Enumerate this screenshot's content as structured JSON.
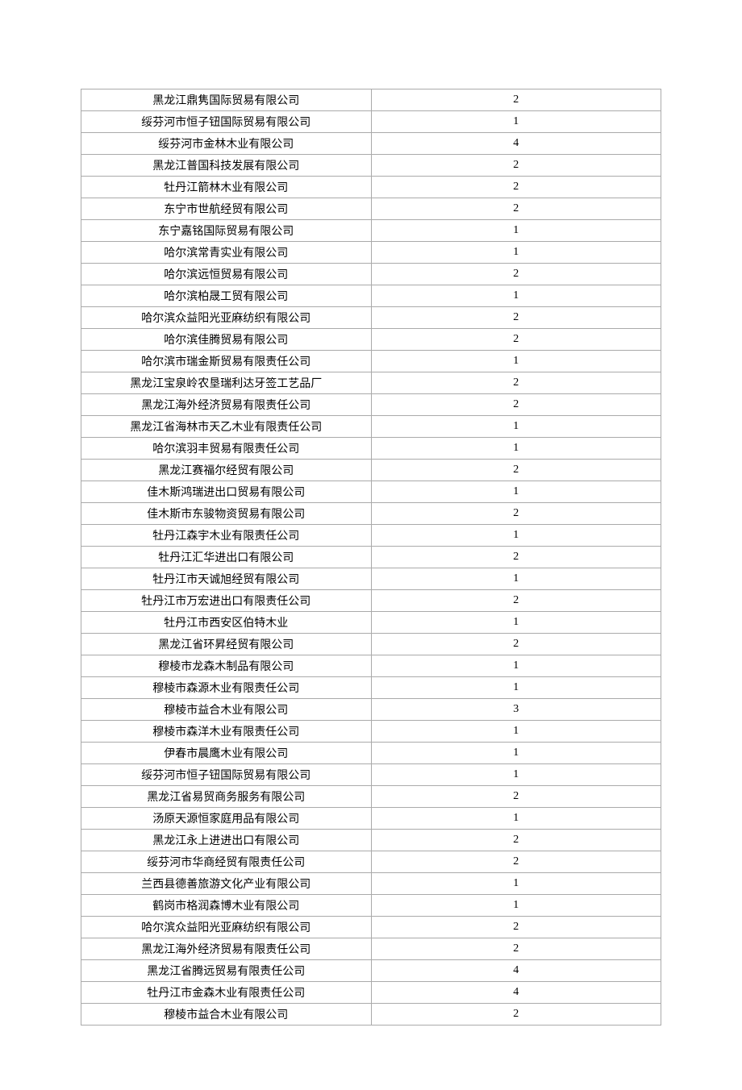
{
  "table": {
    "border_color_outer": "#555555",
    "border_color_inner": "#aaaaaa",
    "background_color": "#ffffff",
    "text_color": "#000000",
    "font_size_pt": 10.5,
    "column_widths_percent": [
      50,
      50
    ],
    "alignment": [
      "center",
      "center"
    ],
    "rows": [
      {
        "name": "黑龙江鼎隽国际贸易有限公司",
        "value": "2"
      },
      {
        "name": "绥芬河市恒子钮国际贸易有限公司",
        "value": "1"
      },
      {
        "name": "绥芬河市金林木业有限公司",
        "value": "4"
      },
      {
        "name": "黑龙江普国科技发展有限公司",
        "value": "2"
      },
      {
        "name": "牡丹江箭林木业有限公司",
        "value": "2"
      },
      {
        "name": "东宁市世航经贸有限公司",
        "value": "2"
      },
      {
        "name": "东宁嘉铭国际贸易有限公司",
        "value": "1"
      },
      {
        "name": "哈尔滨常青实业有限公司",
        "value": "1"
      },
      {
        "name": "哈尔滨远恒贸易有限公司",
        "value": "2"
      },
      {
        "name": "哈尔滨柏晟工贸有限公司",
        "value": "1"
      },
      {
        "name": "哈尔滨众益阳光亚麻纺织有限公司",
        "value": "2"
      },
      {
        "name": "哈尔滨佳腾贸易有限公司",
        "value": "2"
      },
      {
        "name": "哈尔滨市瑞金斯贸易有限责任公司",
        "value": "1"
      },
      {
        "name": "黑龙江宝泉岭农垦瑞利达牙签工艺品厂",
        "value": "2"
      },
      {
        "name": "黑龙江海外经济贸易有限责任公司",
        "value": "2"
      },
      {
        "name": "黑龙江省海林市天乙木业有限责任公司",
        "value": "1"
      },
      {
        "name": "哈尔滨羽丰贸易有限责任公司",
        "value": "1"
      },
      {
        "name": "黑龙江赛福尔经贸有限公司",
        "value": "2"
      },
      {
        "name": "佳木斯鸿瑞进出口贸易有限公司",
        "value": "1"
      },
      {
        "name": "佳木斯市东骏物资贸易有限公司",
        "value": "2"
      },
      {
        "name": "牡丹江森宇木业有限责任公司",
        "value": "1"
      },
      {
        "name": "牡丹江汇华进出口有限公司",
        "value": "2"
      },
      {
        "name": "牡丹江市天诚旭经贸有限公司",
        "value": "1"
      },
      {
        "name": "牡丹江市万宏进出口有限责任公司",
        "value": "2"
      },
      {
        "name": "牡丹江市西安区伯特木业",
        "value": "1"
      },
      {
        "name": "黑龙江省环昇经贸有限公司",
        "value": "2"
      },
      {
        "name": "穆棱市龙森木制品有限公司",
        "value": "1"
      },
      {
        "name": "穆棱市森源木业有限责任公司",
        "value": "1"
      },
      {
        "name": "穆棱市益合木业有限公司",
        "value": "3"
      },
      {
        "name": "穆棱市森洋木业有限责任公司",
        "value": "1"
      },
      {
        "name": "伊春市晨鹰木业有限公司",
        "value": "1"
      },
      {
        "name": "绥芬河市恒子钮国际贸易有限公司",
        "value": "1"
      },
      {
        "name": "黑龙江省易贸商务服务有限公司",
        "value": "2"
      },
      {
        "name": "汤原天源恒家庭用品有限公司",
        "value": "1"
      },
      {
        "name": "黑龙江永上进进出口有限公司",
        "value": "2"
      },
      {
        "name": "绥芬河市华商经贸有限责任公司",
        "value": "2"
      },
      {
        "name": "兰西县德善旅游文化产业有限公司",
        "value": "1"
      },
      {
        "name": "鹤岗市格润森博木业有限公司",
        "value": "1"
      },
      {
        "name": "哈尔滨众益阳光亚麻纺织有限公司",
        "value": "2"
      },
      {
        "name": "黑龙江海外经济贸易有限责任公司",
        "value": "2"
      },
      {
        "name": "黑龙江省腾远贸易有限责任公司",
        "value": "4"
      },
      {
        "name": "牡丹江市金森木业有限责任公司",
        "value": "4"
      },
      {
        "name": "穆棱市益合木业有限公司",
        "value": "2"
      }
    ]
  }
}
